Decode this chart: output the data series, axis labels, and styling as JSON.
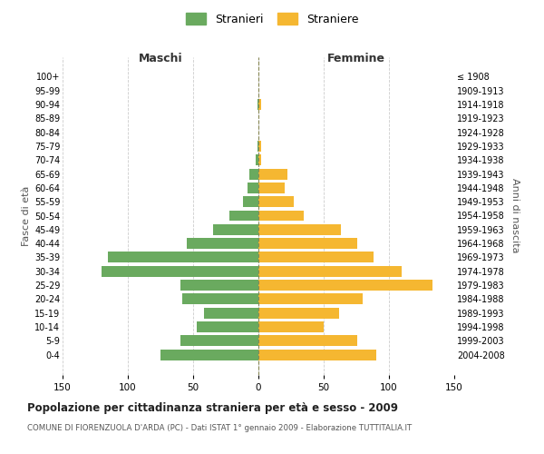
{
  "age_groups": [
    "100+",
    "95-99",
    "90-94",
    "85-89",
    "80-84",
    "75-79",
    "70-74",
    "65-69",
    "60-64",
    "55-59",
    "50-54",
    "45-49",
    "40-44",
    "35-39",
    "30-34",
    "25-29",
    "20-24",
    "15-19",
    "10-14",
    "5-9",
    "0-4"
  ],
  "birth_years": [
    "≤ 1908",
    "1909-1913",
    "1914-1918",
    "1919-1923",
    "1924-1928",
    "1929-1933",
    "1934-1938",
    "1939-1943",
    "1944-1948",
    "1949-1953",
    "1954-1958",
    "1959-1963",
    "1964-1968",
    "1969-1973",
    "1974-1978",
    "1979-1983",
    "1984-1988",
    "1989-1993",
    "1994-1998",
    "1999-2003",
    "2004-2008"
  ],
  "males": [
    0,
    0,
    1,
    0,
    0,
    1,
    2,
    7,
    8,
    12,
    22,
    35,
    55,
    115,
    120,
    60,
    58,
    42,
    47,
    60,
    75
  ],
  "females": [
    0,
    0,
    2,
    0,
    0,
    2,
    2,
    22,
    20,
    27,
    35,
    63,
    76,
    88,
    110,
    133,
    80,
    62,
    50,
    76,
    90
  ],
  "male_color": "#6aaa5f",
  "female_color": "#f5b731",
  "center_line_color": "#888855",
  "grid_color": "#cccccc",
  "title": "Popolazione per cittadinanza straniera per età e sesso - 2009",
  "subtitle": "COMUNE DI FIORENZUOLA D'ARDA (PC) - Dati ISTAT 1° gennaio 2009 - Elaborazione TUTTITALIA.IT",
  "xlabel_left": "Maschi",
  "xlabel_right": "Femmine",
  "ylabel_left": "Fasce di età",
  "ylabel_right": "Anni di nascita",
  "legend_male": "Stranieri",
  "legend_female": "Straniere",
  "xlim": 150,
  "background_color": "#ffffff",
  "bar_height": 0.78
}
